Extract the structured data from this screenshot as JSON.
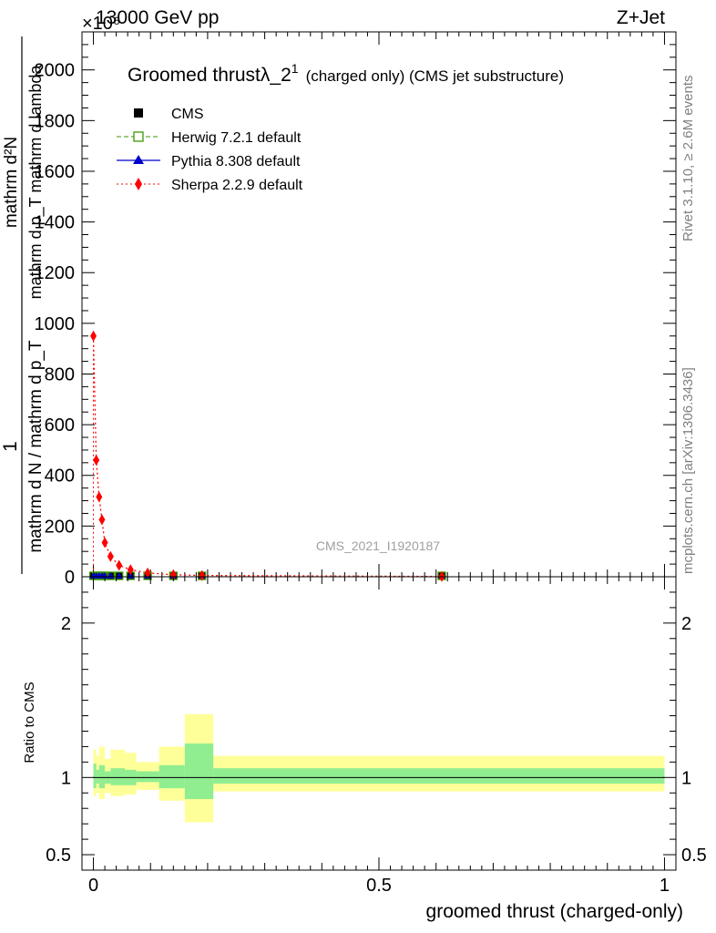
{
  "header": {
    "left": "13000 GeV pp",
    "right": "Z+Jet",
    "exponent": "×10⁶"
  },
  "side_labels": {
    "rivet": "Rivet 3.1.10, ≥ 2.6M events",
    "mcplots": "mcplots.cern.ch [arXiv:1306.3436]"
  },
  "watermark": "CMS_2021_I1920187",
  "main_ylabel": {
    "numerator": "1",
    "denominator": "mathrm d N / mathrm d p_T",
    "right_num": "mathrm d²N",
    "right_den": "mathrm d p_T mathrm d lambda"
  },
  "ratio_ylabel": "Ratio to CMS",
  "title": {
    "main": "Groomed thrustλ_2",
    "sup": "1",
    "rest": "(charged only) (CMS jet substructure)"
  },
  "legend": [
    {
      "label": "CMS",
      "color": "#000000",
      "marker": "square-filled",
      "line": "none"
    },
    {
      "label": "Herwig 7.2.1 default",
      "color": "#3a9a00",
      "marker": "square-open",
      "line": "dashed"
    },
    {
      "label": "Pythia 8.308 default",
      "color": "#0000cc",
      "marker": "triangle",
      "line": "solid"
    },
    {
      "label": "Sherpa 2.2.9 default",
      "color": "#ff0000",
      "marker": "diamond",
      "line": "dotted"
    }
  ],
  "chart_data": [
    {
      "type": "scatter",
      "panel": "main",
      "title": "Groomed thrustλ_2^1 (charged only) (CMS jet substructure)",
      "xlabel": "groomed thrust (charged-only)",
      "ylim": [
        0,
        2150
      ],
      "xlim": [
        -0.02,
        1.02
      ],
      "y_ticks": [
        0,
        200,
        400,
        600,
        800,
        1000,
        1200,
        1400,
        1600,
        1800,
        2000
      ],
      "y_tick_labels": [
        "0",
        "200",
        "400",
        "600",
        "800",
        "1000",
        "1200",
        "1400",
        "1600",
        "1800",
        "2000"
      ],
      "legend_position": "top-left",
      "grid": false,
      "series": [
        {
          "name": "CMS",
          "color": "#000000",
          "x": [
            0.0,
            0.005,
            0.01,
            0.015,
            0.02,
            0.03,
            0.045,
            0.065,
            0.095,
            0.14,
            0.19,
            0.61
          ],
          "y": [
            0,
            0,
            0,
            0,
            0,
            0,
            0,
            0,
            0,
            0,
            0,
            0
          ]
        },
        {
          "name": "Herwig 7.2.1 default",
          "color": "#3a9a00",
          "x": [
            0.0,
            0.005,
            0.01,
            0.015,
            0.02,
            0.03,
            0.045,
            0.065,
            0.095,
            0.14,
            0.19,
            0.61
          ],
          "y": [
            0,
            0,
            0,
            0,
            0,
            0,
            0,
            0,
            0,
            0,
            0,
            0
          ]
        },
        {
          "name": "Pythia 8.308 default",
          "color": "#0000cc",
          "x": [
            0.0,
            0.005,
            0.01,
            0.015,
            0.02,
            0.03,
            0.045,
            0.065,
            0.095,
            0.14,
            0.19,
            0.61
          ],
          "y": [
            0,
            0,
            0,
            0,
            0,
            0,
            0,
            0,
            0,
            0,
            0,
            0
          ]
        },
        {
          "name": "Sherpa 2.2.9 default",
          "color": "#ff0000",
          "x": [
            0.0,
            0.005,
            0.01,
            0.015,
            0.02,
            0.03,
            0.045,
            0.065,
            0.095,
            0.14,
            0.19,
            0.61
          ],
          "y": [
            950,
            460,
            315,
            225,
            135,
            80,
            45,
            28,
            15,
            8,
            5,
            1
          ]
        }
      ]
    },
    {
      "type": "area",
      "panel": "ratio",
      "ylabel": "Ratio to CMS",
      "xlabel": "groomed thrust (charged-only)",
      "xlim": [
        -0.02,
        1.02
      ],
      "ylim": [
        0.4,
        2.3
      ],
      "x_ticks": [
        0,
        0.5,
        1
      ],
      "x_tick_labels": [
        "0",
        "0.5",
        "1"
      ],
      "y_ticks": [
        0.5,
        1,
        2
      ],
      "y_tick_labels": [
        "0.5",
        "1",
        "2"
      ],
      "bands": [
        {
          "x0": 0.0,
          "x1": 0.005,
          "stat_lo": 0.93,
          "stat_hi": 1.09,
          "tot_lo": 0.88,
          "tot_hi": 1.18
        },
        {
          "x0": 0.005,
          "x1": 0.01,
          "stat_lo": 0.96,
          "stat_hi": 1.05,
          "tot_lo": 0.9,
          "tot_hi": 1.14
        },
        {
          "x0": 0.01,
          "x1": 0.02,
          "stat_lo": 0.93,
          "stat_hi": 1.08,
          "tot_lo": 0.86,
          "tot_hi": 1.2
        },
        {
          "x0": 0.02,
          "x1": 0.03,
          "stat_lo": 0.96,
          "stat_hi": 1.04,
          "tot_lo": 0.9,
          "tot_hi": 1.12
        },
        {
          "x0": 0.03,
          "x1": 0.055,
          "stat_lo": 0.95,
          "stat_hi": 1.06,
          "tot_lo": 0.88,
          "tot_hi": 1.18
        },
        {
          "x0": 0.055,
          "x1": 0.075,
          "stat_lo": 0.95,
          "stat_hi": 1.05,
          "tot_lo": 0.89,
          "tot_hi": 1.16
        },
        {
          "x0": 0.075,
          "x1": 0.115,
          "stat_lo": 0.97,
          "stat_hi": 1.04,
          "tot_lo": 0.92,
          "tot_hi": 1.1
        },
        {
          "x0": 0.115,
          "x1": 0.16,
          "stat_lo": 0.93,
          "stat_hi": 1.08,
          "tot_lo": 0.85,
          "tot_hi": 1.2
        },
        {
          "x0": 0.16,
          "x1": 0.21,
          "stat_lo": 0.86,
          "stat_hi": 1.22,
          "tot_lo": 0.71,
          "tot_hi": 1.41
        },
        {
          "x0": 0.21,
          "x1": 1.0,
          "stat_lo": 0.96,
          "stat_hi": 1.06,
          "tot_lo": 0.91,
          "tot_hi": 1.14
        }
      ],
      "reference_line": 1.0,
      "colors": {
        "stat": "#90ee90",
        "total": "#ffff99"
      }
    }
  ]
}
